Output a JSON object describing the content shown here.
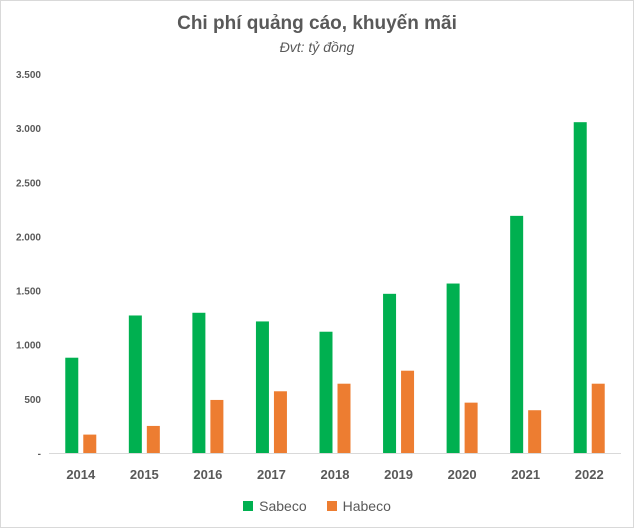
{
  "chart_data": {
    "type": "bar",
    "title": "Chi phí quảng cáo, khuyến mãi",
    "subtitle": "Đvt: tỷ đồng",
    "categories": [
      "2014",
      "2015",
      "2016",
      "2017",
      "2018",
      "2019",
      "2020",
      "2021",
      "2022"
    ],
    "series": [
      {
        "name": "Sabeco",
        "color": "#00b050",
        "values": [
          880,
          1270,
          1295,
          1215,
          1120,
          1470,
          1565,
          2190,
          3055
        ]
      },
      {
        "name": "Habeco",
        "color": "#ed7d31",
        "values": [
          170,
          250,
          490,
          570,
          640,
          760,
          465,
          395,
          640
        ]
      }
    ],
    "ylim": [
      0,
      3500
    ],
    "yticks": [
      0,
      500,
      1000,
      1500,
      2000,
      2500,
      3000,
      3500
    ],
    "ytick_labels": [
      "-",
      "500",
      "1.000",
      "1.500",
      "2.000",
      "2.500",
      "3.000",
      "3.500"
    ],
    "grid": false,
    "legend_position": "bottom"
  }
}
